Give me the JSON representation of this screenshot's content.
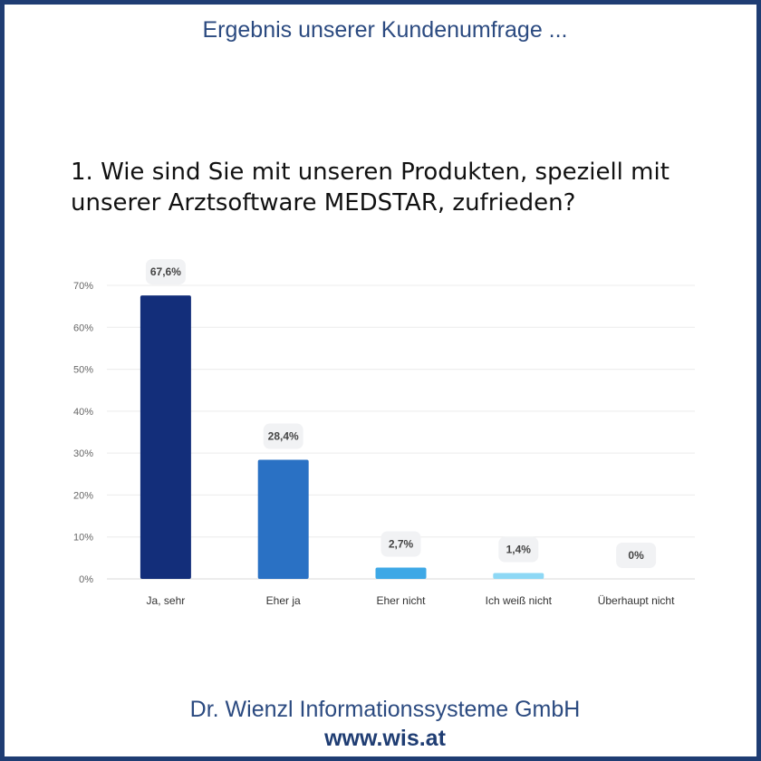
{
  "header": {
    "title": "Ergebnis unserer Kundenumfrage ..."
  },
  "question": {
    "text": "1. Wie sind Sie mit unseren Produkten, speziell mit unserer Arztsoftware MEDSTAR, zufrieden?"
  },
  "chart_data": {
    "type": "bar",
    "title": "",
    "xlabel": "",
    "ylabel": "",
    "categories": [
      "Ja, sehr",
      "Eher ja",
      "Eher nicht",
      "Ich weiß nicht",
      "Überhaupt nicht"
    ],
    "values": [
      67.6,
      28.4,
      2.7,
      1.4,
      0
    ],
    "value_labels": [
      "67,6%",
      "28,4%",
      "2,7%",
      "1,4%",
      "0%"
    ],
    "ylim": [
      0,
      70
    ],
    "yticks": [
      0,
      10,
      20,
      30,
      40,
      50,
      60,
      70
    ],
    "ytick_labels": [
      "0%",
      "10%",
      "20%",
      "30%",
      "40%",
      "50%",
      "60%",
      "70%"
    ],
    "grid": true,
    "legend": "none",
    "colors": [
      "#132e7a",
      "#2a71c4",
      "#3ea8e6",
      "#8ed8f5",
      "#cfeefb"
    ]
  },
  "footer": {
    "company": "Dr. Wienzl Informationssysteme GmbH",
    "url": "www.wis.at"
  }
}
